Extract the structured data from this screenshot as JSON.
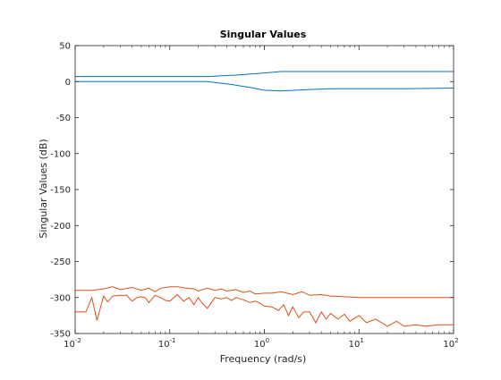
{
  "chart_data": {
    "type": "line",
    "title": "Singular Values",
    "xlabel": "Frequency (rad/s)",
    "ylabel": "Singular Values (dB)",
    "xscale": "log",
    "xlim": [
      0.01,
      100
    ],
    "ylim": [
      -350,
      50
    ],
    "xticks": [
      {
        "value": 0.01,
        "base": "10",
        "exp": "-2"
      },
      {
        "value": 0.1,
        "base": "10",
        "exp": "-1"
      },
      {
        "value": 1,
        "base": "10",
        "exp": "0"
      },
      {
        "value": 10,
        "base": "10",
        "exp": "1"
      },
      {
        "value": 100,
        "base": "10",
        "exp": "2"
      }
    ],
    "yticks": [
      50,
      0,
      -50,
      -100,
      -150,
      -200,
      -250,
      -300,
      -350
    ],
    "grid": false,
    "series": [
      {
        "color": "#0072bd",
        "x": [
          0.01,
          0.1,
          0.25,
          0.5,
          1,
          1.5,
          3,
          10,
          30,
          100
        ],
        "y": [
          7,
          7,
          7,
          9,
          12,
          14,
          14,
          14,
          14,
          14
        ]
      },
      {
        "color": "#0072bd",
        "x": [
          0.01,
          0.1,
          0.25,
          0.4,
          0.7,
          1,
          1.5,
          3,
          5,
          10,
          30,
          100
        ],
        "y": [
          0,
          0,
          0,
          -3,
          -8,
          -12,
          -13,
          -11,
          -10,
          -10,
          -10,
          -9
        ]
      },
      {
        "color": "#d95319",
        "x": [
          0.01,
          0.015,
          0.02,
          0.025,
          0.03,
          0.04,
          0.05,
          0.06,
          0.07,
          0.08,
          0.1,
          0.12,
          0.15,
          0.18,
          0.2,
          0.25,
          0.3,
          0.35,
          0.4,
          0.5,
          0.6,
          0.7,
          0.8,
          1.0,
          1.2,
          1.5,
          2.0,
          2.5,
          3,
          4,
          5,
          7,
          10,
          20,
          50,
          100
        ],
        "y": [
          -290,
          -290,
          -288,
          -285,
          -289,
          -286,
          -290,
          -287,
          -292,
          -287,
          -285,
          -285,
          -287,
          -288,
          -291,
          -287,
          -290,
          -288,
          -291,
          -289,
          -293,
          -291,
          -295,
          -294,
          -294,
          -292,
          -296,
          -292,
          -297,
          -296,
          -298,
          -299,
          -300,
          -300,
          -300,
          -300
        ]
      },
      {
        "color": "#d95319",
        "x": [
          0.01,
          0.013,
          0.015,
          0.017,
          0.02,
          0.022,
          0.025,
          0.03,
          0.035,
          0.04,
          0.045,
          0.05,
          0.055,
          0.06,
          0.07,
          0.08,
          0.09,
          0.1,
          0.12,
          0.14,
          0.16,
          0.18,
          0.2,
          0.22,
          0.25,
          0.3,
          0.35,
          0.4,
          0.45,
          0.5,
          0.6,
          0.7,
          0.8,
          0.9,
          1.0,
          1.2,
          1.4,
          1.6,
          1.8,
          2.0,
          2.3,
          2.6,
          3.0,
          3.5,
          4,
          4.5,
          5,
          6,
          7,
          8,
          10,
          12,
          15,
          20,
          25,
          30,
          40,
          50,
          70,
          100
        ],
        "y": [
          -320,
          -320,
          -300,
          -332,
          -298,
          -306,
          -298,
          -297,
          -297,
          -305,
          -300,
          -299,
          -300,
          -307,
          -297,
          -300,
          -304,
          -305,
          -296,
          -305,
          -300,
          -310,
          -300,
          -308,
          -315,
          -300,
          -302,
          -300,
          -304,
          -300,
          -303,
          -307,
          -305,
          -308,
          -312,
          -313,
          -318,
          -310,
          -325,
          -313,
          -328,
          -320,
          -320,
          -335,
          -320,
          -330,
          -322,
          -330,
          -323,
          -333,
          -325,
          -335,
          -330,
          -340,
          -333,
          -340,
          -338,
          -340,
          -338,
          -338
        ]
      }
    ]
  }
}
